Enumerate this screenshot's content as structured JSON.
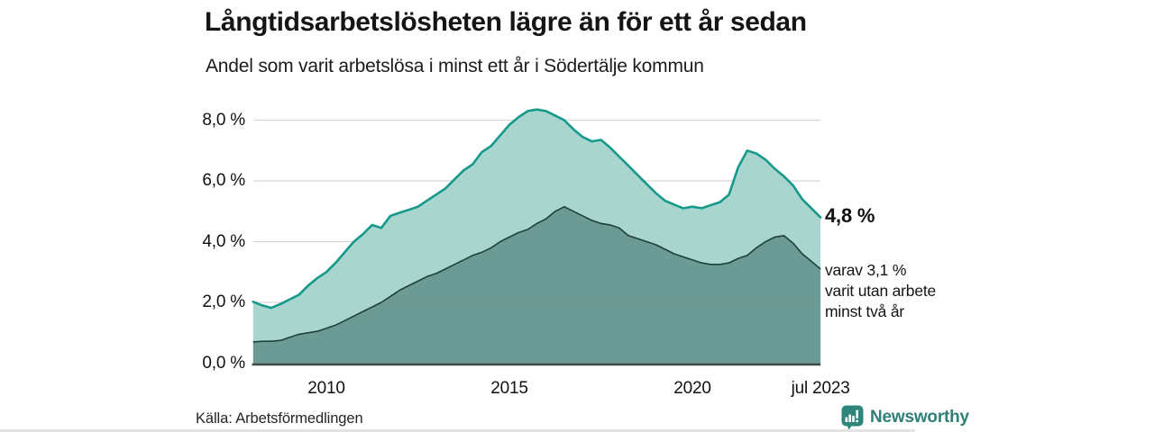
{
  "header": {
    "title": "Långtidsarbetslösheten lägre än för ett år sedan",
    "subtitle": "Andel som varit arbetslösa i minst ett år i Södertälje kommun"
  },
  "annotations": {
    "latest_value": "4,8 %",
    "note": "varav 3,1 %\nvarit utan arbete\nminst två år"
  },
  "footer": {
    "source": "Källa: Arbetsförmedlingen",
    "brand": "Newsworthy"
  },
  "icons": {
    "brand_icon": "bar-chart-map-marker-icon"
  },
  "colors": {
    "line_total": "#15998a",
    "fill_total": "#9fd1ca",
    "line_two_year": "#1f403c",
    "fill_two_year": "#52807a",
    "gridline": "#d7d7d7",
    "axis": "#3e4a47",
    "brand_teal": "#2e7f77",
    "text": "#151515"
  },
  "chart_data": {
    "type": "area",
    "title": "Långtidsarbetslösheten lägre än för ett år sedan",
    "subtitle": "Andel som varit arbetslösa i minst ett år i Södertälje kommun",
    "xlabel": "",
    "ylabel": "",
    "unit": "%",
    "xlim": [
      2008,
      2023.5
    ],
    "ylim": [
      0,
      8.6
    ],
    "grid": "horizontal",
    "legend": "none",
    "x": [
      2008.0,
      2008.25,
      2008.5,
      2008.75,
      2009.0,
      2009.25,
      2009.5,
      2009.75,
      2010.0,
      2010.25,
      2010.5,
      2010.75,
      2011.0,
      2011.25,
      2011.5,
      2011.75,
      2012.0,
      2012.25,
      2012.5,
      2012.75,
      2013.0,
      2013.25,
      2013.5,
      2013.75,
      2014.0,
      2014.25,
      2014.5,
      2014.75,
      2015.0,
      2015.25,
      2015.5,
      2015.75,
      2016.0,
      2016.25,
      2016.5,
      2016.75,
      2017.0,
      2017.25,
      2017.5,
      2017.75,
      2018.0,
      2018.25,
      2018.5,
      2018.75,
      2019.0,
      2019.25,
      2019.5,
      2019.75,
      2020.0,
      2020.25,
      2020.5,
      2020.75,
      2021.0,
      2021.25,
      2021.5,
      2021.75,
      2022.0,
      2022.25,
      2022.5,
      2022.75,
      2023.0,
      2023.25,
      2023.5
    ],
    "series": [
      {
        "name": "Arbetslösa minst ett år",
        "latest_label": "4,8 %",
        "values": [
          2.02,
          1.9,
          1.82,
          1.95,
          2.1,
          2.25,
          2.55,
          2.8,
          3.0,
          3.3,
          3.65,
          4.0,
          4.25,
          4.55,
          4.45,
          4.85,
          4.95,
          5.05,
          5.15,
          5.35,
          5.55,
          5.75,
          6.05,
          6.35,
          6.55,
          6.95,
          7.15,
          7.5,
          7.85,
          8.1,
          8.3,
          8.35,
          8.3,
          8.15,
          8.0,
          7.7,
          7.45,
          7.3,
          7.35,
          7.1,
          6.8,
          6.5,
          6.2,
          5.9,
          5.6,
          5.35,
          5.22,
          5.1,
          5.15,
          5.1,
          5.2,
          5.3,
          5.55,
          6.45,
          7.0,
          6.9,
          6.7,
          6.4,
          6.15,
          5.85,
          5.4,
          5.1,
          4.8
        ]
      },
      {
        "name": "varav arbetslösa minst två år",
        "latest_label": "3,1 %",
        "values": [
          0.7,
          0.72,
          0.72,
          0.75,
          0.85,
          0.95,
          1.0,
          1.05,
          1.15,
          1.25,
          1.4,
          1.55,
          1.7,
          1.85,
          2.0,
          2.2,
          2.4,
          2.55,
          2.7,
          2.85,
          2.95,
          3.1,
          3.25,
          3.4,
          3.55,
          3.65,
          3.8,
          4.0,
          4.15,
          4.3,
          4.4,
          4.6,
          4.75,
          5.0,
          5.15,
          5.0,
          4.85,
          4.7,
          4.6,
          4.55,
          4.45,
          4.2,
          4.1,
          4.0,
          3.9,
          3.75,
          3.6,
          3.5,
          3.4,
          3.3,
          3.25,
          3.25,
          3.3,
          3.45,
          3.55,
          3.8,
          4.0,
          4.15,
          4.2,
          3.95,
          3.6,
          3.35,
          3.1
        ]
      }
    ],
    "yticks": [
      {
        "value": 0,
        "label": "0,0 %"
      },
      {
        "value": 2,
        "label": "2,0 %"
      },
      {
        "value": 4,
        "label": "4,0 %"
      },
      {
        "value": 6,
        "label": "6,0 %"
      },
      {
        "value": 8,
        "label": "8,0 %"
      }
    ],
    "xticks": [
      {
        "value": 2010,
        "label": "2010"
      },
      {
        "value": 2015,
        "label": "2015"
      },
      {
        "value": 2020,
        "label": "2020"
      },
      {
        "value": 2023.5,
        "label": "jul 2023"
      }
    ]
  }
}
